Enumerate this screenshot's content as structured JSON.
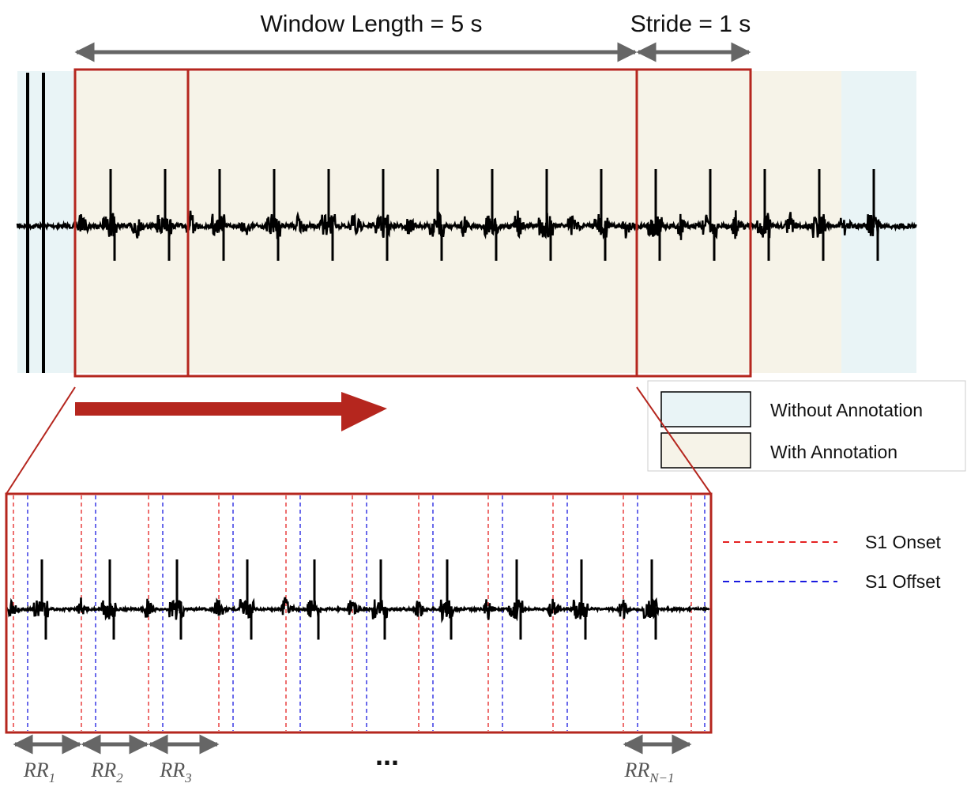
{
  "header": {
    "window": "Window Length = 5 s",
    "stride": "Stride = 1 s"
  },
  "legend": {
    "without": "Without Annotation",
    "with": "With Annotation",
    "onset": "S1 Onset",
    "offset": "S1 Offset"
  },
  "intervals": [
    {
      "label": "RR",
      "subscript": "1"
    },
    {
      "label": "RR",
      "subscript": "2"
    },
    {
      "label": "RR",
      "subscript": "3"
    },
    {
      "label": "RR",
      "subscript": "N−1"
    }
  ],
  "ellipsis": "..."
}
